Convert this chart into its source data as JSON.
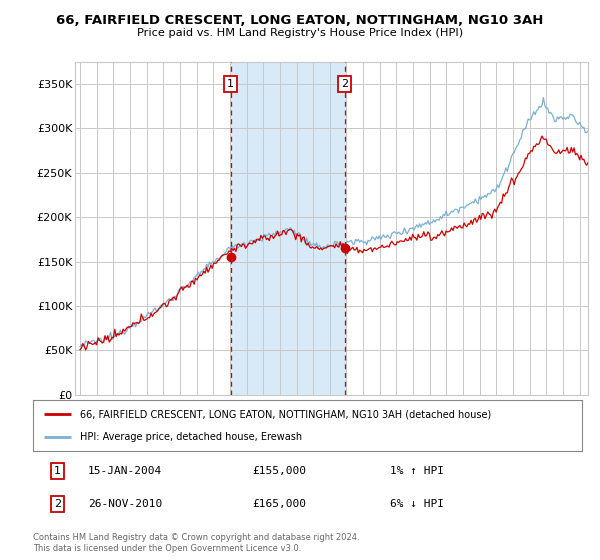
{
  "title": "66, FAIRFIELD CRESCENT, LONG EATON, NOTTINGHAM, NG10 3AH",
  "subtitle": "Price paid vs. HM Land Registry's House Price Index (HPI)",
  "ylabel_ticks": [
    "£0",
    "£50K",
    "£100K",
    "£150K",
    "£200K",
    "£250K",
    "£300K",
    "£350K"
  ],
  "ytick_vals": [
    0,
    50000,
    100000,
    150000,
    200000,
    250000,
    300000,
    350000
  ],
  "ylim": [
    0,
    375000
  ],
  "xlim_start": 1994.7,
  "xlim_end": 2025.5,
  "sale1_date": 2004.04,
  "sale1_price": 155000,
  "sale2_date": 2010.9,
  "sale2_price": 165000,
  "legend_line1": "66, FAIRFIELD CRESCENT, LONG EATON, NOTTINGHAM, NG10 3AH (detached house)",
  "legend_line2": "HPI: Average price, detached house, Erewash",
  "sale1_date_str": "15-JAN-2004",
  "sale1_price_str": "£155,000",
  "sale1_hpi_str": "1% ↑ HPI",
  "sale2_date_str": "26-NOV-2010",
  "sale2_price_str": "£165,000",
  "sale2_hpi_str": "6% ↓ HPI",
  "footnote": "Contains HM Land Registry data © Crown copyright and database right 2024.\nThis data is licensed under the Open Government Licence v3.0.",
  "hpi_color": "#7ab0d4",
  "price_color": "#cc0000",
  "bg_color": "#ffffff",
  "grid_color": "#c8c8c8",
  "shade_color": "#d8eaf8"
}
